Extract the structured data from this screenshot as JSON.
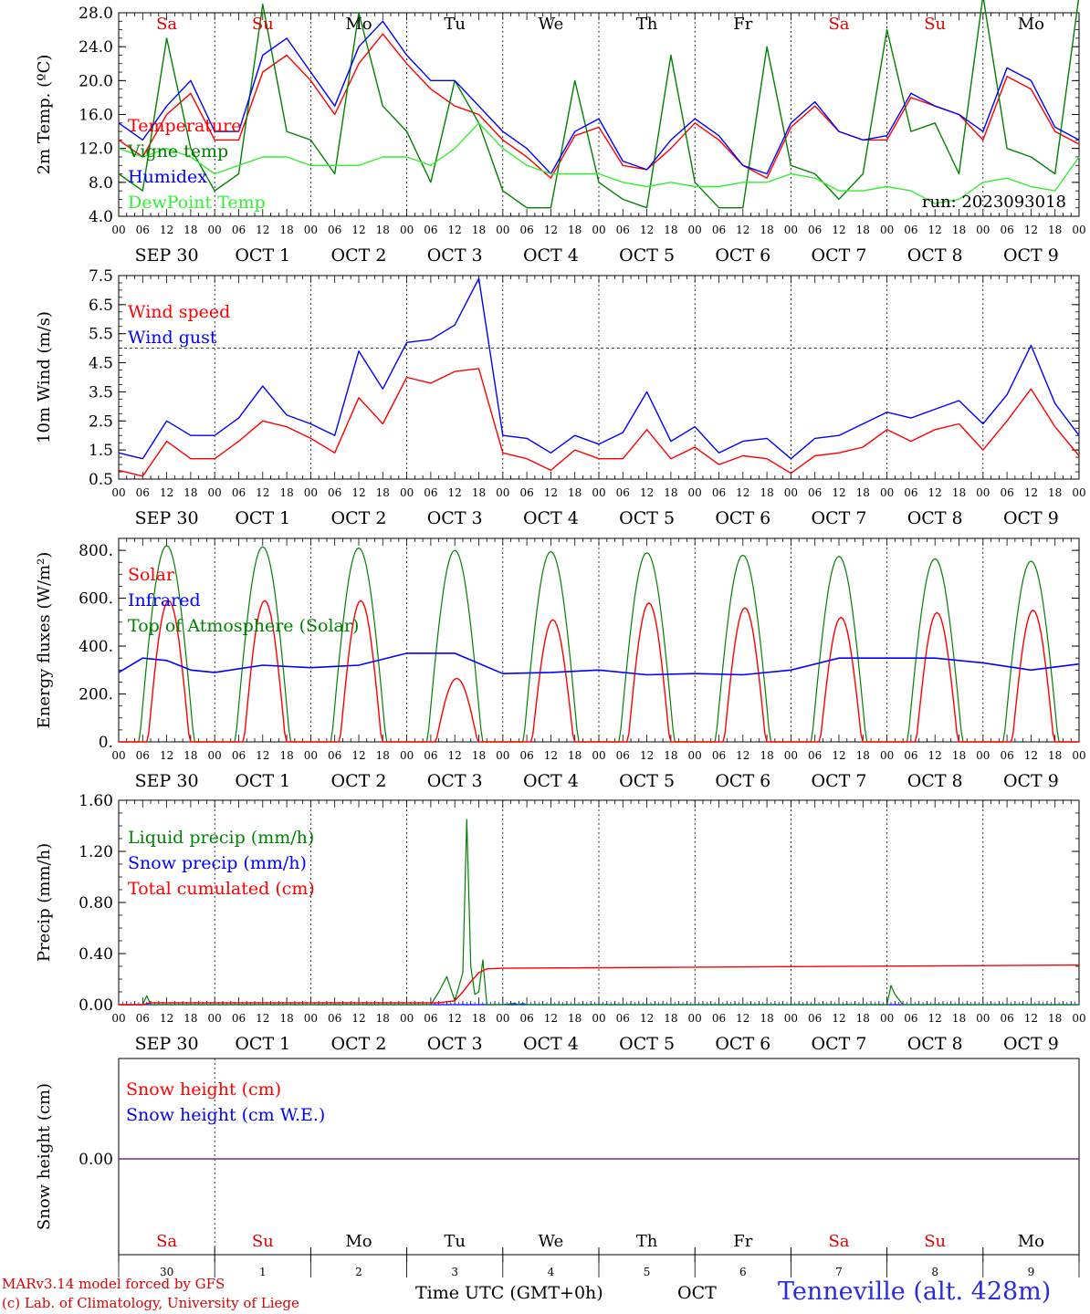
{
  "colors": {
    "red": "#ff0000",
    "green": "#008000",
    "blue": "#0000ff",
    "lightgreen": "#33ee33",
    "purple": "#7a2a8a"
  },
  "run_label": "run: 2023093018",
  "footer": {
    "credit1": "MARv3.14 model forced by GFS",
    "credit2": "(c) Lab. of Climatology, University of Liege",
    "time_label": "Time UTC (GMT+0h)",
    "month_label": "OCT",
    "station": "Tenneville (alt. 428m)"
  },
  "days": [
    {
      "date": "SEP 30",
      "dow": "Sa",
      "dom": "30",
      "weekend": true
    },
    {
      "date": "OCT  1",
      "dow": "Su",
      "dom": "1",
      "weekend": true
    },
    {
      "date": "OCT  2",
      "dow": "Mo",
      "dom": "2",
      "weekend": false
    },
    {
      "date": "OCT  3",
      "dow": "Tu",
      "dom": "3",
      "weekend": false
    },
    {
      "date": "OCT  4",
      "dow": "We",
      "dom": "4",
      "weekend": false
    },
    {
      "date": "OCT  5",
      "dow": "Th",
      "dom": "5",
      "weekend": false
    },
    {
      "date": "OCT  6",
      "dow": "Fr",
      "dom": "6",
      "weekend": false
    },
    {
      "date": "OCT  7",
      "dow": "Sa",
      "dom": "7",
      "weekend": true
    },
    {
      "date": "OCT  8",
      "dow": "Su",
      "dom": "8",
      "weekend": true
    },
    {
      "date": "OCT  9",
      "dow": "Mo",
      "dom": "9",
      "weekend": false
    }
  ],
  "hour_ticks": [
    "00",
    "06",
    "12",
    "18"
  ],
  "chart_data": [
    {
      "type": "line",
      "ylabel": "2m Temp. (ºC)",
      "ylim": [
        4.0,
        28.0
      ],
      "yticks": [
        "4.0",
        "8.0",
        "12.0",
        "16.0",
        "20.0",
        "24.0",
        "28.0"
      ],
      "x_unit": "hours since SEP 30 00 UTC",
      "series": [
        {
          "name": "Temperature",
          "color": "red",
          "x": [
            0,
            6,
            12,
            18,
            24,
            30,
            36,
            42,
            48,
            54,
            60,
            66,
            72,
            78,
            84,
            90,
            96,
            102,
            108,
            114,
            120,
            126,
            132,
            138,
            144,
            150,
            156,
            162,
            168,
            174,
            180,
            186,
            192,
            198,
            204,
            210,
            216,
            222,
            228,
            234,
            240
          ],
          "values": [
            13,
            11,
            16,
            18.5,
            13,
            13,
            21,
            23,
            20,
            16,
            22,
            25.5,
            22,
            19,
            17,
            16,
            13,
            11,
            8.5,
            13.5,
            14.5,
            10,
            9.5,
            12,
            15,
            13,
            10,
            8.5,
            14.5,
            17,
            14,
            13,
            13,
            18,
            17,
            16,
            13,
            20.5,
            19,
            14,
            12.5
          ]
        },
        {
          "name": "Vigne temp",
          "color": "green",
          "x": [
            0,
            6,
            12,
            18,
            24,
            30,
            36,
            42,
            48,
            54,
            60,
            66,
            72,
            78,
            84,
            90,
            96,
            102,
            108,
            114,
            120,
            126,
            132,
            138,
            144,
            150,
            156,
            162,
            168,
            174,
            180,
            186,
            192,
            198,
            204,
            210,
            216,
            222,
            228,
            234,
            240
          ],
          "values": [
            9,
            7,
            25,
            12,
            7,
            9,
            29,
            14,
            13,
            9,
            28,
            17,
            14,
            8,
            20,
            15,
            7,
            5,
            5,
            20,
            8,
            6,
            5,
            23,
            8,
            5,
            5,
            24,
            10,
            9,
            6,
            9,
            26,
            14,
            15,
            9,
            30,
            12,
            11,
            9,
            30
          ]
        },
        {
          "name": "Humidex",
          "color": "blue",
          "x": [
            0,
            6,
            12,
            18,
            24,
            30,
            36,
            42,
            48,
            54,
            60,
            66,
            72,
            78,
            84,
            90,
            96,
            102,
            108,
            114,
            120,
            126,
            132,
            138,
            144,
            150,
            156,
            162,
            168,
            174,
            180,
            186,
            192,
            198,
            204,
            210,
            216,
            222,
            228,
            234,
            240
          ],
          "values": [
            15,
            13,
            17,
            20,
            14,
            14,
            23,
            25,
            21,
            17,
            24,
            27,
            23,
            20,
            20,
            17,
            14,
            12,
            9,
            14,
            15.5,
            10.5,
            9.5,
            13,
            15.5,
            13.5,
            10,
            9,
            15,
            17.5,
            14,
            13,
            13.5,
            18.5,
            17,
            16,
            14,
            21.5,
            20,
            14.5,
            13
          ]
        },
        {
          "name": "DewPoint Temp",
          "color": "lightgreen",
          "x": [
            0,
            6,
            12,
            18,
            24,
            30,
            36,
            42,
            48,
            54,
            60,
            66,
            72,
            78,
            84,
            90,
            96,
            102,
            108,
            114,
            120,
            126,
            132,
            138,
            144,
            150,
            156,
            162,
            168,
            174,
            180,
            186,
            192,
            198,
            204,
            210,
            216,
            222,
            228,
            234,
            240
          ],
          "values": [
            12,
            11,
            12,
            11,
            9,
            10,
            11,
            11,
            10,
            10,
            10,
            11,
            11,
            10,
            12,
            15,
            12,
            10,
            9,
            9,
            9,
            8,
            7.5,
            8,
            7.5,
            7.5,
            8,
            8,
            9,
            8.5,
            7,
            7,
            7.5,
            7,
            5.5,
            6,
            8,
            8.5,
            7.5,
            7,
            11
          ]
        }
      ]
    },
    {
      "type": "line",
      "ylabel": "10m Wind (m/s)",
      "ylim": [
        0.5,
        7.5
      ],
      "yticks": [
        "0.5",
        "1.5",
        "2.5",
        "3.5",
        "4.5",
        "5.5",
        "6.5",
        "7.5"
      ],
      "reference_line": 5.0,
      "series": [
        {
          "name": "Wind speed",
          "color": "red",
          "x": [
            0,
            6,
            12,
            18,
            24,
            30,
            36,
            42,
            48,
            54,
            60,
            66,
            72,
            78,
            84,
            90,
            96,
            102,
            108,
            114,
            120,
            126,
            132,
            138,
            144,
            150,
            156,
            162,
            168,
            174,
            180,
            186,
            192,
            198,
            204,
            210,
            216,
            222,
            228,
            234,
            240
          ],
          "values": [
            0.8,
            0.6,
            1.8,
            1.2,
            1.2,
            1.8,
            2.5,
            2.3,
            1.9,
            1.4,
            3.3,
            2.4,
            4,
            3.8,
            4.2,
            4.3,
            1.4,
            1.2,
            0.8,
            1.5,
            1.2,
            1.2,
            2.2,
            1.2,
            1.6,
            1,
            1.3,
            1.2,
            0.7,
            1.3,
            1.4,
            1.6,
            2.2,
            1.8,
            2.2,
            2.4,
            1.5,
            2.5,
            3.6,
            2.3,
            1.3
          ]
        },
        {
          "name": "Wind gust",
          "color": "blue",
          "x": [
            0,
            6,
            12,
            18,
            24,
            30,
            36,
            42,
            48,
            54,
            60,
            66,
            72,
            78,
            84,
            90,
            96,
            102,
            108,
            114,
            120,
            126,
            132,
            138,
            144,
            150,
            156,
            162,
            168,
            174,
            180,
            186,
            192,
            198,
            204,
            210,
            216,
            222,
            228,
            234,
            240
          ],
          "values": [
            1.4,
            1.2,
            2.5,
            2,
            2,
            2.6,
            3.7,
            2.7,
            2.4,
            2,
            4.9,
            3.6,
            5.2,
            5.3,
            5.8,
            7.4,
            2,
            1.9,
            1.4,
            2,
            1.7,
            2.1,
            3.5,
            1.8,
            2.3,
            1.4,
            1.8,
            1.9,
            1.2,
            1.9,
            2,
            2.4,
            2.8,
            2.6,
            2.9,
            3.2,
            2.4,
            3.4,
            5.1,
            3.1,
            2
          ]
        }
      ]
    },
    {
      "type": "line",
      "ylabel": "Energy fluxes (W/m²)",
      "ylim": [
        0,
        850
      ],
      "yticks": [
        "0.",
        "200.",
        "400.",
        "600.",
        "800."
      ],
      "series": [
        {
          "name": "Solar",
          "color": "red",
          "kind": "diurnal",
          "peaks": [
            590,
            590,
            590,
            265,
            510,
            580,
            560,
            520,
            540,
            550
          ]
        },
        {
          "name": "Infrared",
          "color": "blue",
          "x": [
            0,
            6,
            12,
            18,
            24,
            36,
            48,
            60,
            72,
            84,
            96,
            108,
            120,
            132,
            144,
            156,
            168,
            180,
            192,
            204,
            216,
            228,
            240
          ],
          "values": [
            290,
            350,
            340,
            300,
            290,
            320,
            310,
            320,
            370,
            370,
            285,
            290,
            300,
            280,
            285,
            280,
            300,
            350,
            350,
            350,
            330,
            300,
            325
          ]
        },
        {
          "name": "Top of Atmosphere (Solar)",
          "color": "green",
          "kind": "diurnal",
          "peaks": [
            820,
            815,
            810,
            800,
            795,
            790,
            780,
            775,
            765,
            755
          ]
        }
      ]
    },
    {
      "type": "line",
      "ylabel": "Precip (mm/h)",
      "ylim": [
        0,
        1.6
      ],
      "yticks": [
        "0.00",
        "0.40",
        "0.80",
        "1.20",
        "1.60"
      ],
      "series": [
        {
          "name": "Liquid precip (mm/h)",
          "color": "green",
          "x": [
            0,
            6,
            7,
            8,
            12,
            70,
            78,
            80,
            82,
            84,
            86,
            87,
            88,
            89,
            90,
            91,
            92,
            96,
            99,
            100,
            101,
            102,
            186,
            192,
            193,
            194,
            196,
            197,
            240
          ],
          "values": [
            0,
            0,
            0.07,
            0,
            0,
            0,
            0,
            0.1,
            0.22,
            0.03,
            0.25,
            1.45,
            0.3,
            0.08,
            0.1,
            0.35,
            0,
            0,
            0.01,
            0,
            0.01,
            0,
            0,
            0,
            0.15,
            0.08,
            0,
            0,
            0
          ]
        },
        {
          "name": "Snow precip (mm/h)",
          "color": "blue",
          "x": [
            0,
            240
          ],
          "values": [
            0,
            0
          ]
        },
        {
          "name": "Total cumulated (cm)",
          "color": "red",
          "x": [
            0,
            6,
            8,
            80,
            84,
            86,
            88,
            90,
            92,
            96,
            240
          ],
          "values": [
            0,
            0,
            0.015,
            0.015,
            0.03,
            0.1,
            0.18,
            0.25,
            0.28,
            0.285,
            0.31
          ]
        }
      ]
    },
    {
      "type": "line",
      "ylabel": "Snow height (cm)",
      "yticks": [
        "0.00"
      ],
      "series": [
        {
          "name": "Snow height (cm)",
          "color": "red",
          "x": [
            0,
            240
          ],
          "values": [
            0,
            0
          ]
        },
        {
          "name": "Snow height (cm W.E.)",
          "color": "blue",
          "x": [
            0,
            240
          ],
          "values": [
            0,
            0
          ]
        }
      ]
    }
  ]
}
